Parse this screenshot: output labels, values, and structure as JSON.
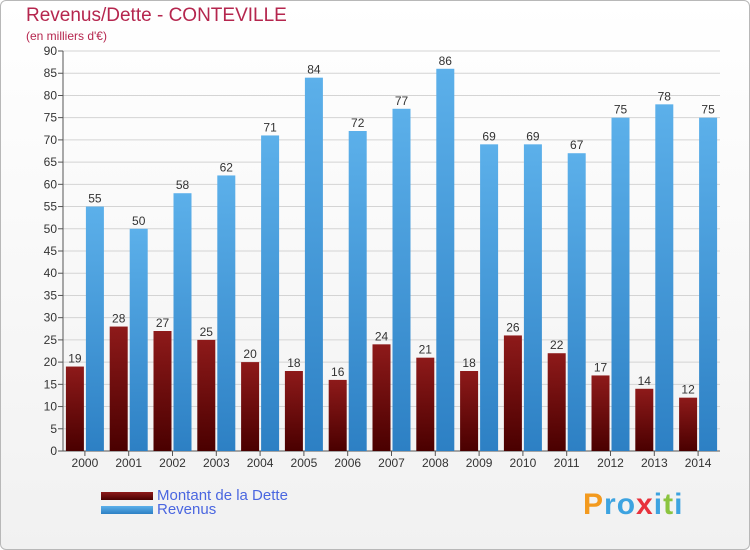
{
  "chart_data": {
    "type": "bar",
    "title": "Revenus/Dette - CONTEVILLE",
    "subtitle": "(en milliers d'€)",
    "categories": [
      "2000",
      "2001",
      "2002",
      "2003",
      "2004",
      "2005",
      "2006",
      "2007",
      "2008",
      "2009",
      "2010",
      "2011",
      "2012",
      "2013",
      "2014"
    ],
    "series": [
      {
        "name": "Montant de la Dette",
        "color": "#6b0b0b",
        "values": [
          19,
          28,
          27,
          25,
          20,
          18,
          16,
          24,
          21,
          18,
          26,
          22,
          17,
          14,
          12
        ]
      },
      {
        "name": "Revenus",
        "color": "#3e9bdc",
        "values": [
          55,
          50,
          58,
          62,
          71,
          84,
          72,
          77,
          86,
          69,
          69,
          67,
          75,
          78,
          75
        ]
      }
    ],
    "ylim": [
      0,
      90
    ],
    "ytick_step": 5,
    "grid": true,
    "legend": "bottom-left"
  },
  "logo": {
    "text": "Proxiti",
    "letters": [
      "P",
      "r",
      "o",
      "x",
      "i",
      "t",
      "i"
    ],
    "colors": [
      "#f39a1e",
      "#3da3e0",
      "#3da3e0",
      "#e8323c",
      "#3da3e0",
      "#8bc43f",
      "#3da3e0"
    ]
  }
}
